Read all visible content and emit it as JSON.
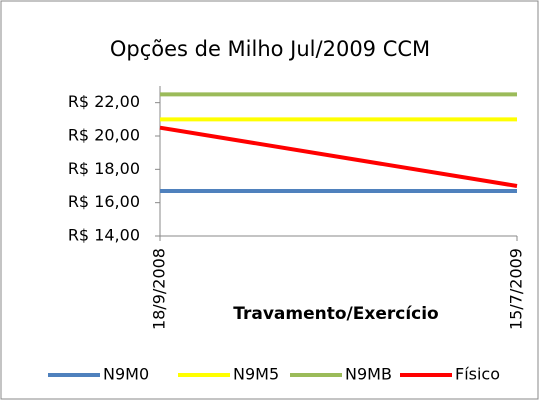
{
  "chart_data": {
    "type": "line",
    "title": "Opções de Milho Jul/2009 CCM",
    "x_label": "Travamento/Exercício",
    "categories": [
      "18/9/2008",
      "15/7/2009"
    ],
    "series": [
      {
        "name": "N9M0",
        "color": "#4f81bd",
        "values": [
          16.7,
          16.7
        ]
      },
      {
        "name": "N9M5",
        "color": "#ffff00",
        "values": [
          21.0,
          21.0
        ]
      },
      {
        "name": "N9MB",
        "color": "#9bbb59",
        "values": [
          22.5,
          22.5
        ]
      },
      {
        "name": "Físico",
        "color": "#ff0000",
        "values": [
          20.5,
          17.0
        ]
      }
    ],
    "ylim": [
      14,
      23
    ],
    "yticks": [
      {
        "value": 14,
        "label": "R$ 14,00"
      },
      {
        "value": 16,
        "label": "R$ 16,00"
      },
      {
        "value": 18,
        "label": "R$ 18,00"
      },
      {
        "value": 20,
        "label": "R$ 20,00"
      },
      {
        "value": 22,
        "label": "R$ 22,00"
      }
    ],
    "grid": false,
    "legend": "bottom"
  }
}
